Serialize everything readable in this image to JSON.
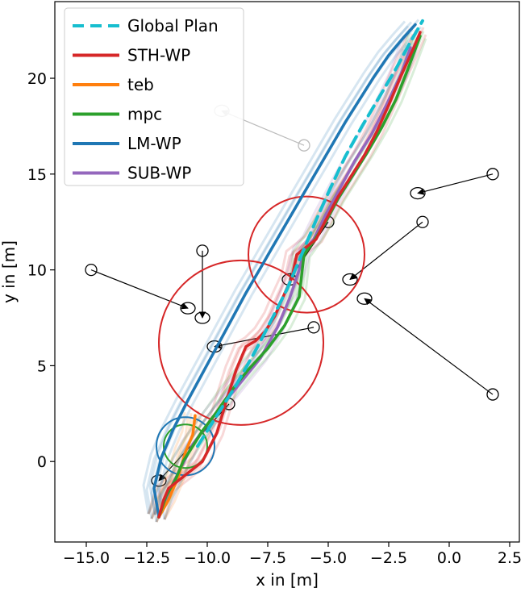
{
  "chart_data": {
    "type": "line",
    "xlabel": "x in [m]",
    "ylabel": "y in [m]",
    "xlim": [
      -16.3,
      2.9
    ],
    "ylim": [
      -4.2,
      24.0
    ],
    "xticks": [
      -15.0,
      -12.5,
      -10.0,
      -7.5,
      -5.0,
      -2.5,
      0.0,
      2.5
    ],
    "xtick_labels": [
      "−15.0",
      "−12.5",
      "−10.0",
      "−7.5",
      "−5.0",
      "−2.5",
      "0.0",
      "2.5"
    ],
    "yticks": [
      0,
      5,
      10,
      15,
      20
    ],
    "ytick_labels": [
      "0",
      "5",
      "10",
      "15",
      "20"
    ],
    "grid": false,
    "legend": {
      "position": "top-left",
      "entries": [
        {
          "label": "Global Plan",
          "color": "#17becf",
          "dashed": true
        },
        {
          "label": "STH-WP",
          "color": "#d62728"
        },
        {
          "label": "teb",
          "color": "#ff7f0e"
        },
        {
          "label": "mpc",
          "color": "#2ca02c"
        },
        {
          "label": "LM-WP",
          "color": "#1f77b4"
        },
        {
          "label": "SUB-WP",
          "color": "#9467bd"
        }
      ]
    },
    "series": [
      {
        "name": "Global Plan",
        "color": "#17becf",
        "dashed": true,
        "x": [
          -10.4,
          -9.7,
          -8.8,
          -8.0,
          -7.3,
          -6.7,
          -6.1,
          -5.5,
          -4.9,
          -4.3,
          -3.6,
          -2.9,
          -2.2,
          -1.6,
          -1.1
        ],
        "y": [
          0.8,
          2.2,
          4.0,
          5.8,
          7.5,
          9.0,
          10.8,
          12.6,
          14.3,
          15.9,
          17.5,
          19.0,
          20.5,
          21.9,
          23.0
        ]
      },
      {
        "name": "STH-WP",
        "color": "#d62728",
        "x": [
          -12.0,
          -11.8,
          -11.6,
          -11.0,
          -10.2,
          -9.6,
          -9.2,
          -8.8,
          -8.4,
          -8.0,
          -7.6,
          -7.2,
          -6.9,
          -6.5,
          -6.3,
          -5.9,
          -5.5,
          -5.1,
          -4.6,
          -4.0,
          -3.5,
          -3.0,
          -2.5,
          -2.0,
          -1.5,
          -1.2
        ],
        "y": [
          -2.9,
          -2.0,
          -1.4,
          -0.8,
          0.0,
          1.5,
          3.2,
          4.8,
          6.0,
          6.3,
          6.8,
          7.6,
          8.5,
          9.6,
          10.8,
          11.2,
          11.6,
          12.6,
          13.8,
          15.0,
          16.0,
          17.2,
          18.6,
          20.1,
          21.5,
          22.4
        ]
      },
      {
        "name": "teb",
        "color": "#ff7f0e",
        "x": [
          -12.0,
          -11.6,
          -11.2,
          -10.9,
          -10.6,
          -10.5
        ],
        "y": [
          -2.9,
          -2.0,
          -0.8,
          0.5,
          1.4,
          2.4
        ]
      },
      {
        "name": "mpc",
        "color": "#2ca02c",
        "x": [
          -12.0,
          -11.7,
          -11.3,
          -11.0,
          -10.6,
          -10.2,
          -9.6,
          -9.0,
          -8.3,
          -7.5,
          -6.8,
          -6.2,
          -6.0,
          -5.6,
          -5.1,
          -4.6,
          -4.0,
          -3.4,
          -2.8,
          -2.2,
          -1.7,
          -1.2
        ],
        "y": [
          -2.9,
          -1.8,
          -0.9,
          0.0,
          0.8,
          1.6,
          2.6,
          3.7,
          4.8,
          5.9,
          7.1,
          8.6,
          10.8,
          11.5,
          12.5,
          13.7,
          14.9,
          16.1,
          17.4,
          18.9,
          20.5,
          22.2
        ]
      },
      {
        "name": "LM-WP",
        "color": "#1f77b4",
        "x": [
          -12.0,
          -12.2,
          -11.9,
          -11.4,
          -10.8,
          -10.2,
          -9.6,
          -9.0,
          -8.4,
          -7.8,
          -7.3,
          -6.7,
          -6.1,
          -5.5,
          -4.9,
          -4.3,
          -3.7,
          -3.1,
          -2.5,
          -1.9,
          -1.4
        ],
        "y": [
          -2.9,
          -1.4,
          0.2,
          1.7,
          3.2,
          4.6,
          6.0,
          7.4,
          8.8,
          10.1,
          11.2,
          12.5,
          13.8,
          15.1,
          16.4,
          17.7,
          18.9,
          20.1,
          21.2,
          22.1,
          22.8
        ]
      },
      {
        "name": "SUB-WP",
        "color": "#9467bd",
        "x": [
          -12.0,
          -11.4,
          -10.6,
          -9.6,
          -8.7,
          -7.8,
          -7.1,
          -6.6,
          -6.2,
          -6.0,
          -5.6,
          -5.1,
          -4.5,
          -3.9,
          -3.2,
          -2.6,
          -2.0,
          -1.6
        ],
        "y": [
          -2.9,
          -1.1,
          0.9,
          2.6,
          4.0,
          5.4,
          7.0,
          8.5,
          10.0,
          11.0,
          11.6,
          12.9,
          14.3,
          15.7,
          17.1,
          18.6,
          20.2,
          21.6
        ]
      }
    ],
    "circles": [
      {
        "x": -5.9,
        "y": 10.8,
        "r": 2.4,
        "color": "#d62728"
      },
      {
        "x": -8.6,
        "y": 6.2,
        "r": 3.4,
        "color": "#d62728"
      },
      {
        "x": -10.9,
        "y": 0.8,
        "r": 1.2,
        "color": "#1f77b4"
      },
      {
        "x": -10.9,
        "y": 0.8,
        "r": 0.9,
        "color": "#2ca02c"
      }
    ],
    "obstacle_arrows": [
      {
        "from": [
          -6.0,
          16.5
        ],
        "to": [
          -9.4,
          18.3
        ],
        "faded": true
      },
      {
        "from": [
          1.8,
          15.0
        ],
        "to": [
          -1.3,
          14.0
        ]
      },
      {
        "from": [
          -5.0,
          12.5
        ],
        "to": [
          -6.6,
          9.5
        ]
      },
      {
        "from": [
          -1.1,
          12.5
        ],
        "to": [
          -4.1,
          9.5
        ]
      },
      {
        "from": [
          -14.8,
          10.0
        ],
        "to": [
          -10.8,
          8.0
        ]
      },
      {
        "from": [
          -10.2,
          11.0
        ],
        "to": [
          -10.2,
          7.5
        ]
      },
      {
        "from": [
          -5.6,
          7.0
        ],
        "to": [
          -9.7,
          6.0
        ]
      },
      {
        "from": [
          1.8,
          3.5
        ],
        "to": [
          -3.5,
          8.5
        ]
      },
      {
        "from": [
          -9.1,
          3.0
        ],
        "to": [
          -12.0,
          -1.0
        ]
      }
    ]
  }
}
